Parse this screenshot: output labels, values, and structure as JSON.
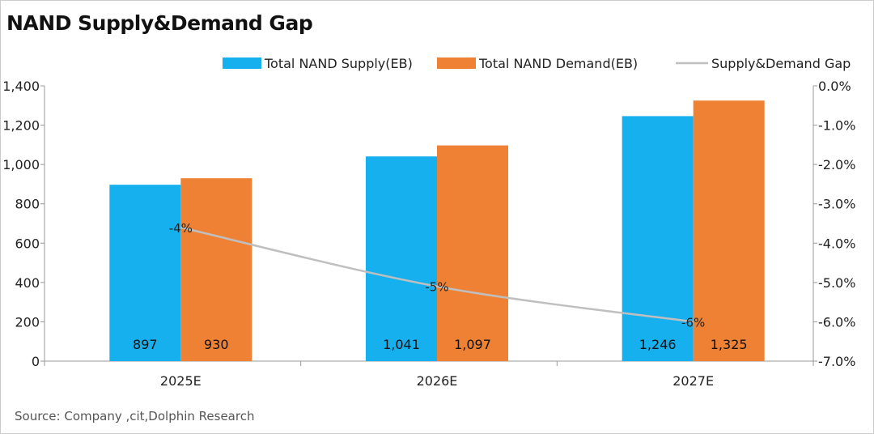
{
  "title": "NAND Supply&Demand Gap",
  "source": "Source:  Company  ,cit,Dolphin  Research",
  "chart_data": {
    "type": "bar",
    "categories": [
      "2025E",
      "2026E",
      "2027E"
    ],
    "series": [
      {
        "name": "Total NAND Supply(EB)",
        "values": [
          897,
          1041,
          1246
        ],
        "labels": [
          "897",
          "1,041",
          "1,246"
        ],
        "color": "#17B0EE",
        "axis": "left"
      },
      {
        "name": "Total NAND Demand(EB)",
        "values": [
          930,
          1097,
          1325
        ],
        "labels": [
          "930",
          "1,097",
          "1,325"
        ],
        "color": "#EE8133",
        "axis": "left"
      },
      {
        "name": "Supply&Demand Gap",
        "type": "line",
        "values": [
          -3.6,
          -5.1,
          -6.0
        ],
        "labels": [
          "-4%",
          "-5%",
          "-6%"
        ],
        "color": "#BFBFBF",
        "axis": "right",
        "smooth": true
      }
    ],
    "ylim_left": [
      0,
      1400
    ],
    "ylim_right": [
      -7.0,
      0.0
    ],
    "yticks_left": [
      "0",
      "200",
      "400",
      "600",
      "800",
      "1,000",
      "1,200",
      "1,400"
    ],
    "yticks_right": [
      "-7.0%",
      "-6.0%",
      "-5.0%",
      "-4.0%",
      "-3.0%",
      "-2.0%",
      "-1.0%",
      "0.0%"
    ],
    "grid": false,
    "legend": "top"
  }
}
